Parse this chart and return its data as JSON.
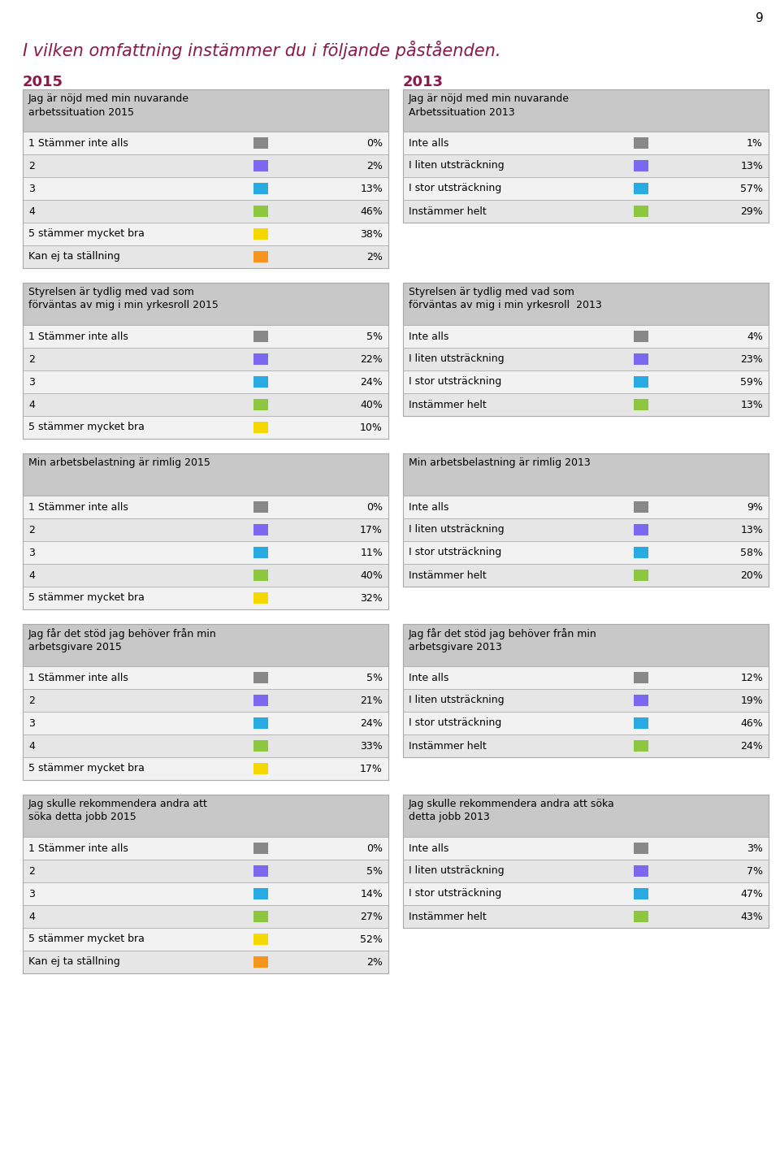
{
  "page_number": "9",
  "main_title": "I vilken omfattning instämmer du i följande påståenden.",
  "title_color": "#8B1A4A",
  "year_left": "2015",
  "year_right": "2013",
  "background_color": "#FFFFFF",
  "header_bg": "#C8C8C8",
  "row_bg_light": "#F2F2F2",
  "row_bg_dark": "#E6E6E6",
  "border_color": "#AAAAAA",
  "tables_left": [
    {
      "title": "Jag är nöjd med min nuvarande\narbetssituation 2015",
      "rows": [
        {
          "label": "1 Stämmer inte alls",
          "value": "0%",
          "color": "#888888"
        },
        {
          "label": "2",
          "value": "2%",
          "color": "#7B68EE"
        },
        {
          "label": "3",
          "value": "13%",
          "color": "#29ABE2"
        },
        {
          "label": "4",
          "value": "46%",
          "color": "#8DC63F"
        },
        {
          "label": "5 stämmer mycket bra",
          "value": "38%",
          "color": "#F5D800"
        },
        {
          "label": "Kan ej ta ställning",
          "value": "2%",
          "color": "#F7941D"
        }
      ]
    },
    {
      "title": "Styrelsen är tydlig med vad som\nförväntas av mig i min yrkesroll 2015",
      "rows": [
        {
          "label": "1 Stämmer inte alls",
          "value": "5%",
          "color": "#888888"
        },
        {
          "label": "2",
          "value": "22%",
          "color": "#7B68EE"
        },
        {
          "label": "3",
          "value": "24%",
          "color": "#29ABE2"
        },
        {
          "label": "4",
          "value": "40%",
          "color": "#8DC63F"
        },
        {
          "label": "5 stämmer mycket bra",
          "value": "10%",
          "color": "#F5D800"
        }
      ]
    },
    {
      "title": "Min arbetsbelastning är rimlig 2015",
      "rows": [
        {
          "label": "1 Stämmer inte alls",
          "value": "0%",
          "color": "#888888"
        },
        {
          "label": "2",
          "value": "17%",
          "color": "#7B68EE"
        },
        {
          "label": "3",
          "value": "11%",
          "color": "#29ABE2"
        },
        {
          "label": "4",
          "value": "40%",
          "color": "#8DC63F"
        },
        {
          "label": "5 stämmer mycket bra",
          "value": "32%",
          "color": "#F5D800"
        }
      ]
    },
    {
      "title": "Jag får det stöd jag behöver från min\narbetsgivare 2015",
      "rows": [
        {
          "label": "1 Stämmer inte alls",
          "value": "5%",
          "color": "#888888"
        },
        {
          "label": "2",
          "value": "21%",
          "color": "#7B68EE"
        },
        {
          "label": "3",
          "value": "24%",
          "color": "#29ABE2"
        },
        {
          "label": "4",
          "value": "33%",
          "color": "#8DC63F"
        },
        {
          "label": "5 stämmer mycket bra",
          "value": "17%",
          "color": "#F5D800"
        }
      ]
    },
    {
      "title": "Jag skulle rekommendera andra att\nsöka detta jobb 2015",
      "rows": [
        {
          "label": "1 Stämmer inte alls",
          "value": "0%",
          "color": "#888888"
        },
        {
          "label": "2",
          "value": "5%",
          "color": "#7B68EE"
        },
        {
          "label": "3",
          "value": "14%",
          "color": "#29ABE2"
        },
        {
          "label": "4",
          "value": "27%",
          "color": "#8DC63F"
        },
        {
          "label": "5 stämmer mycket bra",
          "value": "52%",
          "color": "#F5D800"
        },
        {
          "label": "Kan ej ta ställning",
          "value": "2%",
          "color": "#F7941D"
        }
      ]
    }
  ],
  "tables_right": [
    {
      "title": "Jag är nöjd med min nuvarande\nArbetssituation 2013",
      "rows": [
        {
          "label": "Inte alls",
          "value": "1%",
          "color": "#888888"
        },
        {
          "label": "I liten utsträckning",
          "value": "13%",
          "color": "#7B68EE"
        },
        {
          "label": "I stor utsträckning",
          "value": "57%",
          "color": "#29ABE2"
        },
        {
          "label": "Instämmer helt",
          "value": "29%",
          "color": "#8DC63F"
        }
      ]
    },
    {
      "title": "Styrelsen är tydlig med vad som\nförväntas av mig i min yrkesroll  2013",
      "rows": [
        {
          "label": "Inte alls",
          "value": "4%",
          "color": "#888888"
        },
        {
          "label": "I liten utsträckning",
          "value": "23%",
          "color": "#7B68EE"
        },
        {
          "label": "I stor utsträckning",
          "value": "59%",
          "color": "#29ABE2"
        },
        {
          "label": "Instämmer helt",
          "value": "13%",
          "color": "#8DC63F"
        }
      ]
    },
    {
      "title": "Min arbetsbelastning är rimlig 2013",
      "rows": [
        {
          "label": "Inte alls",
          "value": "9%",
          "color": "#888888"
        },
        {
          "label": "I liten utsträckning",
          "value": "13%",
          "color": "#7B68EE"
        },
        {
          "label": "I stor utsträckning",
          "value": "58%",
          "color": "#29ABE2"
        },
        {
          "label": "Instämmer helt",
          "value": "20%",
          "color": "#8DC63F"
        }
      ]
    },
    {
      "title": "Jag får det stöd jag behöver från min\narbetsgivare 2013",
      "rows": [
        {
          "label": "Inte alls",
          "value": "12%",
          "color": "#888888"
        },
        {
          "label": "I liten utsträckning",
          "value": "19%",
          "color": "#7B68EE"
        },
        {
          "label": "I stor utsträckning",
          "value": "46%",
          "color": "#29ABE2"
        },
        {
          "label": "Instämmer helt",
          "value": "24%",
          "color": "#8DC63F"
        }
      ]
    },
    {
      "title": "Jag skulle rekommendera andra att söka\ndetta jobb 2013",
      "rows": [
        {
          "label": "Inte alls",
          "value": "3%",
          "color": "#888888"
        },
        {
          "label": "I liten utsträckning",
          "value": "7%",
          "color": "#7B68EE"
        },
        {
          "label": "I stor utsträckning",
          "value": "47%",
          "color": "#29ABE2"
        },
        {
          "label": "Instämmer helt",
          "value": "43%",
          "color": "#8DC63F"
        }
      ]
    }
  ]
}
